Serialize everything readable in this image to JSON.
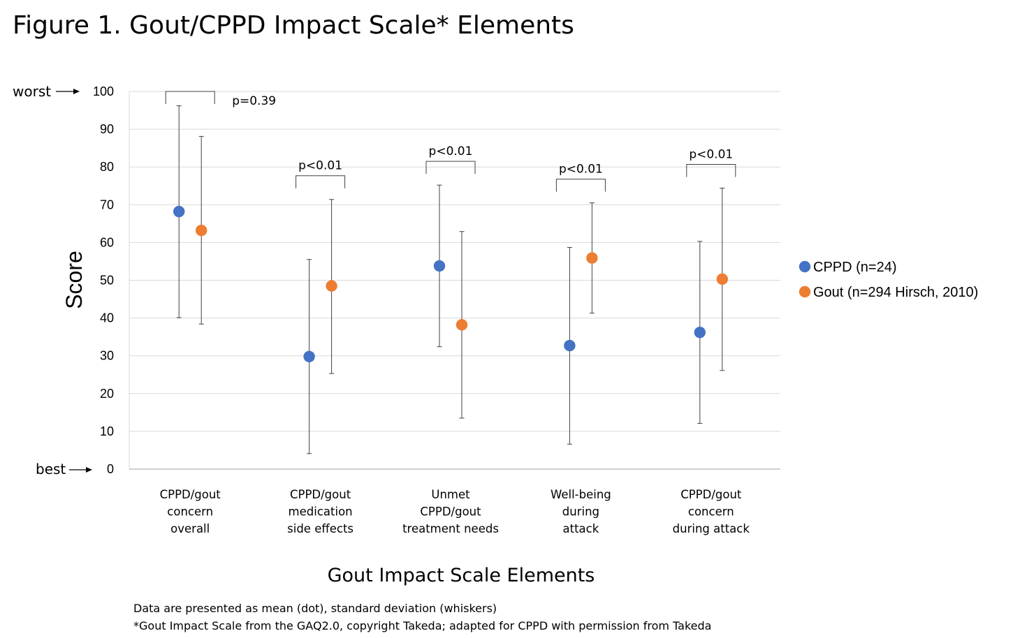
{
  "title": "Figure 1. Gout/CPPD Impact Scale* Elements",
  "chart_data": {
    "type": "scatter",
    "xlabel": "Gout Impact Scale Elements",
    "ylabel": "Score",
    "ylim": [
      0,
      100
    ],
    "yticks": [
      0,
      10,
      20,
      30,
      40,
      50,
      60,
      70,
      80,
      90,
      100
    ],
    "grid": true,
    "legend_position": "right",
    "y_markers": {
      "top": "worst",
      "bottom": "best"
    },
    "categories": [
      [
        "CPPD/gout",
        "concern",
        "overall"
      ],
      [
        "CPPD/gout",
        "medication",
        "side effects"
      ],
      [
        "Unmet",
        "CPPD/gout",
        "treatment needs"
      ],
      [
        "Well-being",
        "during",
        "attack"
      ],
      [
        "CPPD/gout",
        "concern",
        "during attack"
      ]
    ],
    "series": [
      {
        "name": "CPPD (n=24)",
        "color": "#4472c4",
        "mean": [
          68.2,
          29.8,
          53.8,
          32.7,
          36.2
        ],
        "low": [
          40.1,
          4.1,
          32.4,
          6.6,
          12.1
        ],
        "high": [
          96.2,
          55.5,
          75.2,
          58.7,
          60.3
        ]
      },
      {
        "name": "Gout (n=294 Hirsch, 2010)",
        "color": "#ed7d31",
        "mean": [
          63.2,
          48.5,
          38.2,
          55.9,
          50.3
        ],
        "low": [
          38.4,
          25.3,
          13.5,
          41.3,
          26.1
        ],
        "high": [
          88.1,
          71.4,
          62.9,
          70.5,
          74.4
        ]
      }
    ],
    "p_values": [
      "p=0.39",
      "p<0.01",
      "p<0.01",
      "p<0.01",
      "p<0.01"
    ]
  },
  "footnotes": [
    "Data are presented as mean (dot), standard deviation (whiskers)",
    "*Gout Impact Scale from the GAQ2.0, copyright Takeda; adapted for CPPD with permission from Takeda"
  ]
}
